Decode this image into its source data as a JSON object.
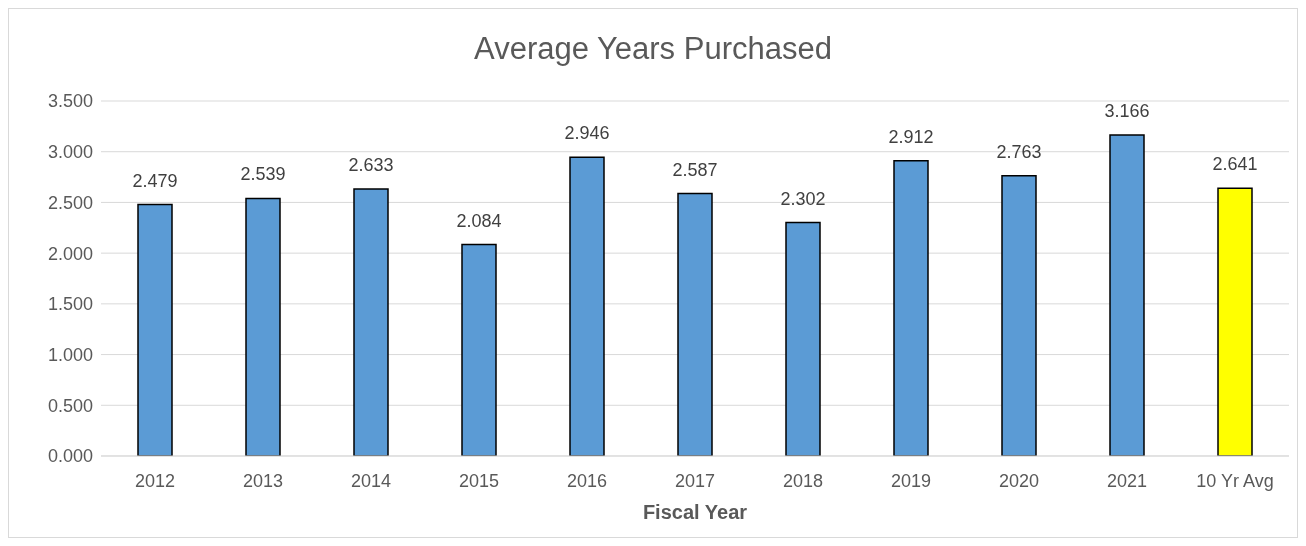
{
  "chart_data": {
    "type": "bar",
    "title": "Average Years Purchased",
    "xlabel": "Fiscal Year",
    "categories": [
      "2012",
      "2013",
      "2014",
      "2015",
      "2016",
      "2017",
      "2018",
      "2019",
      "2020",
      "2021",
      "10 Yr Avg"
    ],
    "values": [
      2.479,
      2.539,
      2.633,
      2.084,
      2.946,
      2.587,
      2.302,
      2.912,
      2.763,
      3.166,
      2.641
    ],
    "colors": [
      "#5b9bd5",
      "#5b9bd5",
      "#5b9bd5",
      "#5b9bd5",
      "#5b9bd5",
      "#5b9bd5",
      "#5b9bd5",
      "#5b9bd5",
      "#5b9bd5",
      "#5b9bd5",
      "#ffff00"
    ],
    "ylim": [
      0,
      3.5
    ],
    "yticks": [
      {
        "value": 0,
        "label": "0.000"
      },
      {
        "value": 0.5,
        "label": "0.500"
      },
      {
        "value": 1,
        "label": "1.000"
      },
      {
        "value": 1.5,
        "label": "1.500"
      },
      {
        "value": 2,
        "label": "2.000"
      },
      {
        "value": 2.5,
        "label": "2.500"
      },
      {
        "value": 3,
        "label": "3.000"
      },
      {
        "value": 3.5,
        "label": "3.500"
      }
    ],
    "grid": "y",
    "data_labels": true
  }
}
